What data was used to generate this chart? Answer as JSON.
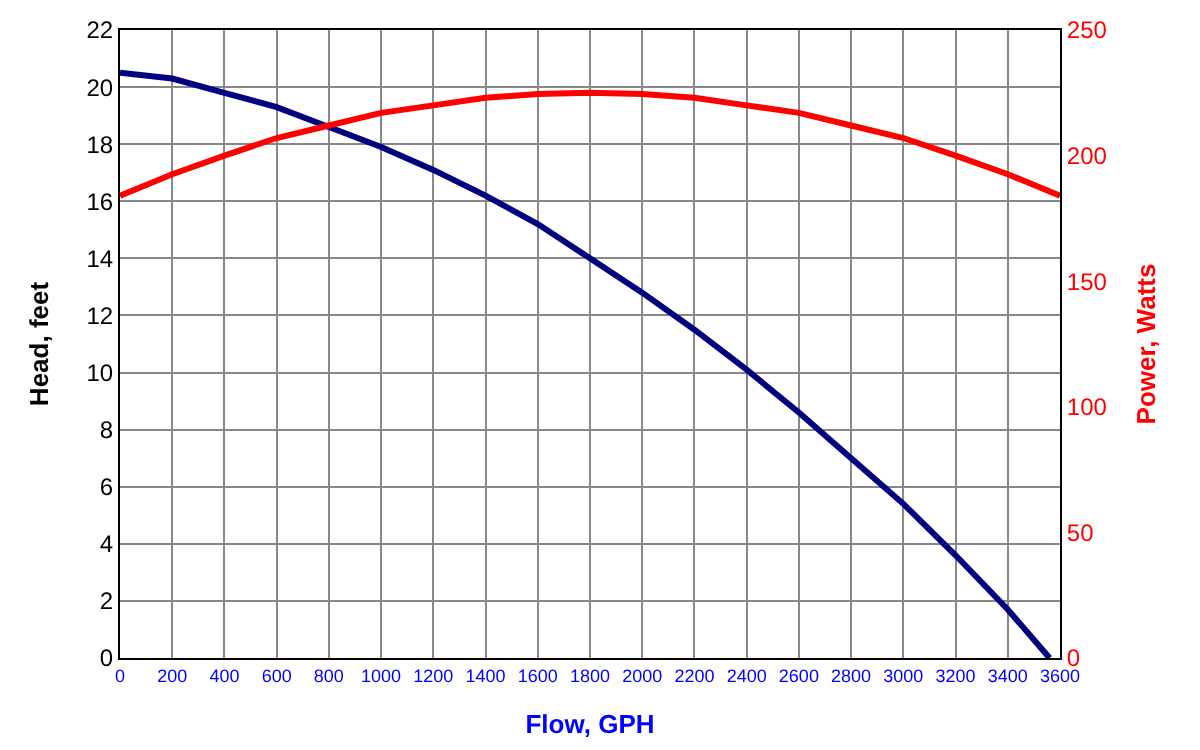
{
  "chart_data": {
    "type": "line",
    "xlabel": "Flow, GPH",
    "ylabel": "Head, feet",
    "y2label": "Power, Watts",
    "xlim": [
      0,
      3600
    ],
    "xticks": [
      0,
      200,
      400,
      600,
      800,
      1000,
      1200,
      1400,
      1600,
      1800,
      2000,
      2200,
      2400,
      2600,
      2800,
      3000,
      3200,
      3400,
      3600
    ],
    "ylim": [
      0,
      22
    ],
    "yticks": [
      0,
      2,
      4,
      6,
      8,
      10,
      12,
      14,
      16,
      18,
      20,
      22
    ],
    "y2lim": [
      0,
      250
    ],
    "y2ticks": [
      0,
      50,
      100,
      150,
      200,
      250
    ],
    "grid": true,
    "marker": "none",
    "line_style": "solid",
    "series": [
      {
        "color": "#000080",
        "x": [
          0,
          200,
          400,
          600,
          800,
          1000,
          1200,
          1400,
          1600,
          1800,
          2000,
          2200,
          2400,
          2600,
          2800,
          3000,
          3200,
          3400,
          3560
        ],
        "values": [
          20.5,
          20.3,
          19.8,
          19.3,
          18.6,
          17.9,
          17.1,
          16.2,
          15.2,
          14.0,
          12.8,
          11.5,
          10.1,
          8.6,
          7.0,
          5.4,
          3.6,
          1.7,
          0
        ]
      },
      {
        "color": "#ff0000",
        "axis": "y2",
        "x": [
          0,
          200,
          400,
          600,
          800,
          1000,
          1200,
          1400,
          1600,
          1800,
          2000,
          2200,
          2400,
          2600,
          2800,
          3000,
          3200,
          3400,
          3600
        ],
        "values": [
          184,
          192.6,
          200,
          207,
          212,
          217,
          220,
          223,
          224.5,
          225,
          224.5,
          223,
          220,
          217,
          212,
          207,
          200,
          192.6,
          184
        ]
      }
    ]
  }
}
